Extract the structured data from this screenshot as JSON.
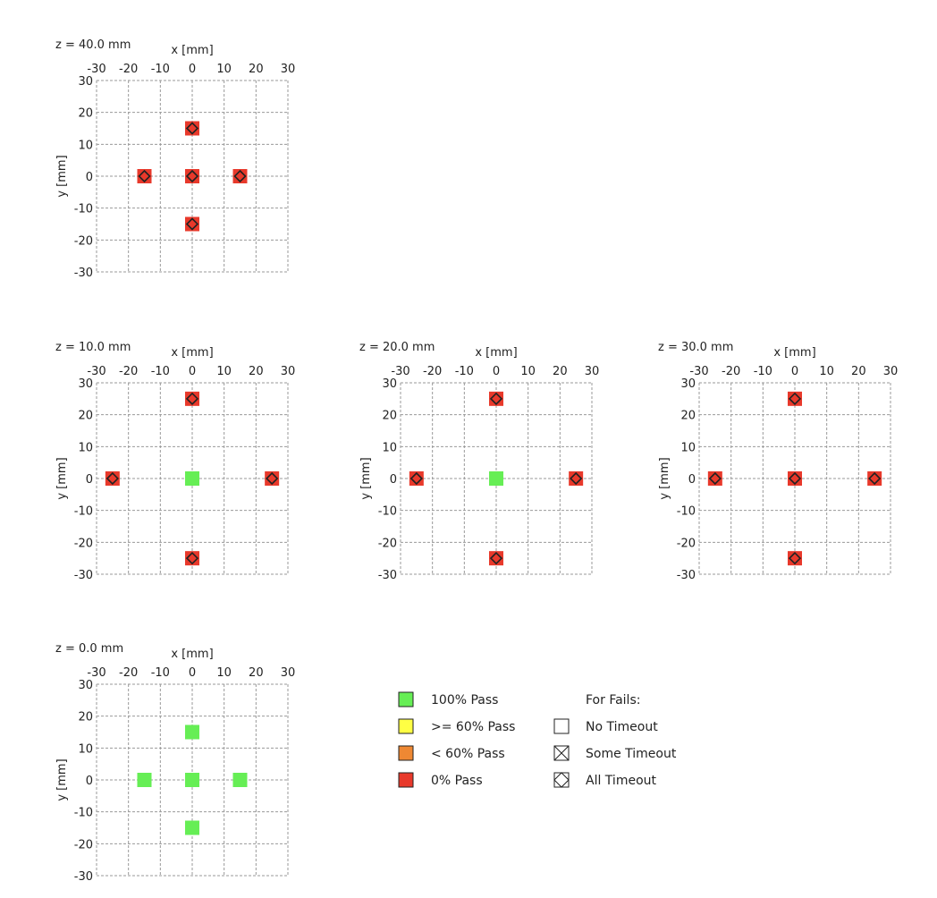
{
  "colors": {
    "pass_100": "#66ee55",
    "pass_ge_60": "#ffff44",
    "pass_lt_60": "#ee8833",
    "pass_0": "#e8392b",
    "grid": "#999999",
    "marker_outline": "#222222"
  },
  "chart_data": [
    {
      "type": "scatter",
      "title": "z = 40.0 mm",
      "xlabel": "x [mm]",
      "ylabel": "y [mm]",
      "xlim": [
        -30,
        30
      ],
      "ylim": [
        -30,
        30
      ],
      "x_ticks": [
        "-30",
        "-20",
        "-10",
        "0",
        "10",
        "20",
        "30"
      ],
      "y_ticks": [
        "30",
        "20",
        "10",
        "0",
        "-10",
        "-20",
        "-30"
      ],
      "grid": true,
      "points": [
        {
          "x": 0,
          "y": 15,
          "status": "0% Pass",
          "timeout": "All Timeout"
        },
        {
          "x": -15,
          "y": 0,
          "status": "0% Pass",
          "timeout": "All Timeout"
        },
        {
          "x": 0,
          "y": 0,
          "status": "0% Pass",
          "timeout": "All Timeout"
        },
        {
          "x": 15,
          "y": 0,
          "status": "0% Pass",
          "timeout": "All Timeout"
        },
        {
          "x": 0,
          "y": -15,
          "status": "0% Pass",
          "timeout": "All Timeout"
        }
      ]
    },
    {
      "type": "scatter",
      "title": "z = 10.0 mm",
      "xlabel": "x [mm]",
      "ylabel": "y [mm]",
      "xlim": [
        -30,
        30
      ],
      "ylim": [
        -30,
        30
      ],
      "x_ticks": [
        "-30",
        "-20",
        "-10",
        "0",
        "10",
        "20",
        "30"
      ],
      "y_ticks": [
        "30",
        "20",
        "10",
        "0",
        "-10",
        "-20",
        "-30"
      ],
      "grid": true,
      "points": [
        {
          "x": 0,
          "y": 25,
          "status": "0% Pass",
          "timeout": "All Timeout"
        },
        {
          "x": -25,
          "y": 0,
          "status": "0% Pass",
          "timeout": "All Timeout"
        },
        {
          "x": 0,
          "y": 0,
          "status": "100% Pass",
          "timeout": "No Timeout"
        },
        {
          "x": 25,
          "y": 0,
          "status": "0% Pass",
          "timeout": "All Timeout"
        },
        {
          "x": 0,
          "y": -25,
          "status": "0% Pass",
          "timeout": "All Timeout"
        }
      ]
    },
    {
      "type": "scatter",
      "title": "z = 20.0 mm",
      "xlabel": "x [mm]",
      "ylabel": "y [mm]",
      "xlim": [
        -30,
        30
      ],
      "ylim": [
        -30,
        30
      ],
      "x_ticks": [
        "-30",
        "-20",
        "-10",
        "0",
        "10",
        "20",
        "30"
      ],
      "y_ticks": [
        "30",
        "20",
        "10",
        "0",
        "-10",
        "-20",
        "-30"
      ],
      "grid": true,
      "points": [
        {
          "x": 0,
          "y": 25,
          "status": "0% Pass",
          "timeout": "All Timeout"
        },
        {
          "x": -25,
          "y": 0,
          "status": "0% Pass",
          "timeout": "All Timeout"
        },
        {
          "x": 0,
          "y": 0,
          "status": "100% Pass",
          "timeout": "No Timeout"
        },
        {
          "x": 25,
          "y": 0,
          "status": "0% Pass",
          "timeout": "All Timeout"
        },
        {
          "x": 0,
          "y": -25,
          "status": "0% Pass",
          "timeout": "All Timeout"
        }
      ]
    },
    {
      "type": "scatter",
      "title": "z = 30.0 mm",
      "xlabel": "x [mm]",
      "ylabel": "y [mm]",
      "xlim": [
        -30,
        30
      ],
      "ylim": [
        -30,
        30
      ],
      "x_ticks": [
        "-30",
        "-20",
        "-10",
        "0",
        "10",
        "20",
        "30"
      ],
      "y_ticks": [
        "30",
        "20",
        "10",
        "0",
        "-10",
        "-20",
        "-30"
      ],
      "grid": true,
      "points": [
        {
          "x": 0,
          "y": 25,
          "status": "0% Pass",
          "timeout": "All Timeout"
        },
        {
          "x": -25,
          "y": 0,
          "status": "0% Pass",
          "timeout": "All Timeout"
        },
        {
          "x": 0,
          "y": 0,
          "status": "0% Pass",
          "timeout": "All Timeout"
        },
        {
          "x": 25,
          "y": 0,
          "status": "0% Pass",
          "timeout": "All Timeout"
        },
        {
          "x": 0,
          "y": -25,
          "status": "0% Pass",
          "timeout": "All Timeout"
        }
      ]
    },
    {
      "type": "scatter",
      "title": "z = 0.0 mm",
      "xlabel": "x [mm]",
      "ylabel": "y [mm]",
      "xlim": [
        -30,
        30
      ],
      "ylim": [
        -30,
        30
      ],
      "x_ticks": [
        "-30",
        "-20",
        "-10",
        "0",
        "10",
        "20",
        "30"
      ],
      "y_ticks": [
        "30",
        "20",
        "10",
        "0",
        "-10",
        "-20",
        "-30"
      ],
      "grid": true,
      "points": [
        {
          "x": 0,
          "y": 15,
          "status": "100% Pass",
          "timeout": "No Timeout"
        },
        {
          "x": -15,
          "y": 0,
          "status": "100% Pass",
          "timeout": "No Timeout"
        },
        {
          "x": 0,
          "y": 0,
          "status": "100% Pass",
          "timeout": "No Timeout"
        },
        {
          "x": 15,
          "y": 0,
          "status": "100% Pass",
          "timeout": "No Timeout"
        },
        {
          "x": 0,
          "y": -15,
          "status": "100% Pass",
          "timeout": "No Timeout"
        }
      ]
    }
  ],
  "legend": {
    "status_items": [
      {
        "label": "100% Pass",
        "color_key": "pass_100"
      },
      {
        "label": ">= 60% Pass",
        "color_key": "pass_ge_60"
      },
      {
        "label": "< 60% Pass",
        "color_key": "pass_lt_60"
      },
      {
        "label": "0% Pass",
        "color_key": "pass_0"
      }
    ],
    "fails_header": "For Fails:",
    "timeout_items": [
      {
        "label": "No Timeout",
        "icon": "empty-square-icon"
      },
      {
        "label": "Some Timeout",
        "icon": "crossed-square-icon"
      },
      {
        "label": "All Timeout",
        "icon": "diamond-square-icon"
      }
    ]
  }
}
